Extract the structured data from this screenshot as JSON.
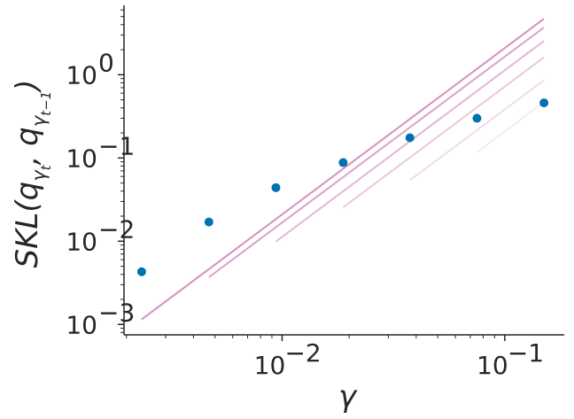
{
  "chart_data": {
    "type": "scatter",
    "xscale": "log",
    "yscale": "log",
    "xlim": [
      0.00195,
      0.185
    ],
    "ylim": [
      0.00075,
      6.5
    ],
    "xlabel": "γ",
    "ylabel": {
      "base": "SKL(q",
      "sub1": "γ",
      "sub1b": "t",
      "sep": ", q",
      "sub2": "γ",
      "sub2b": "t−1",
      "close": ")"
    },
    "x_ticks": [
      {
        "value": 0.01,
        "base": "10",
        "exp": "−2"
      },
      {
        "value": 0.1,
        "base": "10",
        "exp": "−1"
      }
    ],
    "y_ticks": [
      {
        "value": 0.001,
        "base": "10",
        "exp": "−3"
      },
      {
        "value": 0.01,
        "base": "10",
        "exp": "−2"
      },
      {
        "value": 0.1,
        "base": "10",
        "exp": "−1"
      },
      {
        "value": 1,
        "base": "10",
        "exp": "0"
      }
    ],
    "series": [
      {
        "x": [
          0.00234,
          0.00469,
          0.00938,
          0.0188,
          0.0375,
          0.075,
          0.15
        ],
        "y": [
          0.0043,
          0.017,
          0.044,
          0.088,
          0.175,
          0.3,
          0.46
        ],
        "color": "#0072b2"
      }
    ],
    "reference_lines": [
      {
        "x": [
          0.00234,
          0.15
        ],
        "y": [
          0.00115,
          4.7
        ],
        "color": "#d58fc2",
        "opacity": 1.0
      },
      {
        "x": [
          0.00469,
          0.15
        ],
        "y": [
          0.0037,
          3.7
        ],
        "color": "#d58fc2",
        "opacity": 0.85
      },
      {
        "x": [
          0.00938,
          0.15
        ],
        "y": [
          0.0099,
          2.55
        ],
        "color": "#d58fc2",
        "opacity": 0.65
      },
      {
        "x": [
          0.0188,
          0.15
        ],
        "y": [
          0.0255,
          1.62
        ],
        "color": "#d58fc2",
        "opacity": 0.5
      },
      {
        "x": [
          0.0375,
          0.15
        ],
        "y": [
          0.054,
          0.86
        ],
        "color": "#d58fc2",
        "opacity": 0.32
      },
      {
        "x": [
          0.075,
          0.15
        ],
        "y": [
          0.117,
          0.47
        ],
        "color": "#d58fc2",
        "opacity": 0.18
      }
    ],
    "grid": false,
    "spines": [
      "left",
      "bottom"
    ]
  }
}
